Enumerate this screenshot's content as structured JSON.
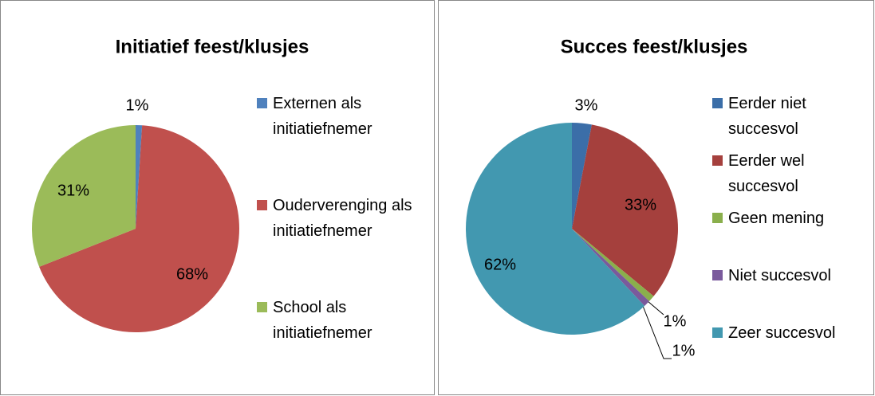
{
  "chart_data": [
    {
      "type": "pie",
      "title": "Initiatief feest/klusjes",
      "categories": [
        "Externen als initiatiefnemer",
        "Ouderverenging als initiatiefnemer",
        "School als initiatiefnemer"
      ],
      "values": [
        1,
        68,
        31
      ],
      "value_labels": [
        "1%",
        "68%",
        "31%"
      ],
      "colors": [
        "#4f81bd",
        "#c0504d",
        "#9bbb59"
      ],
      "legend": "right"
    },
    {
      "type": "pie",
      "title": "Succes feest/klusjes",
      "categories": [
        "Eerder niet succesvol",
        "Eerder wel succesvol",
        "Geen mening",
        "Niet succesvol",
        "Zeer succesvol"
      ],
      "values": [
        3,
        33,
        1,
        1,
        62
      ],
      "value_labels": [
        "3%",
        "33%",
        "1%",
        "1%",
        "62%"
      ],
      "colors": [
        "#3b6ea8",
        "#a5403d",
        "#8aaf4c",
        "#7a5a9c",
        "#4298b0"
      ],
      "legend": "right"
    }
  ]
}
